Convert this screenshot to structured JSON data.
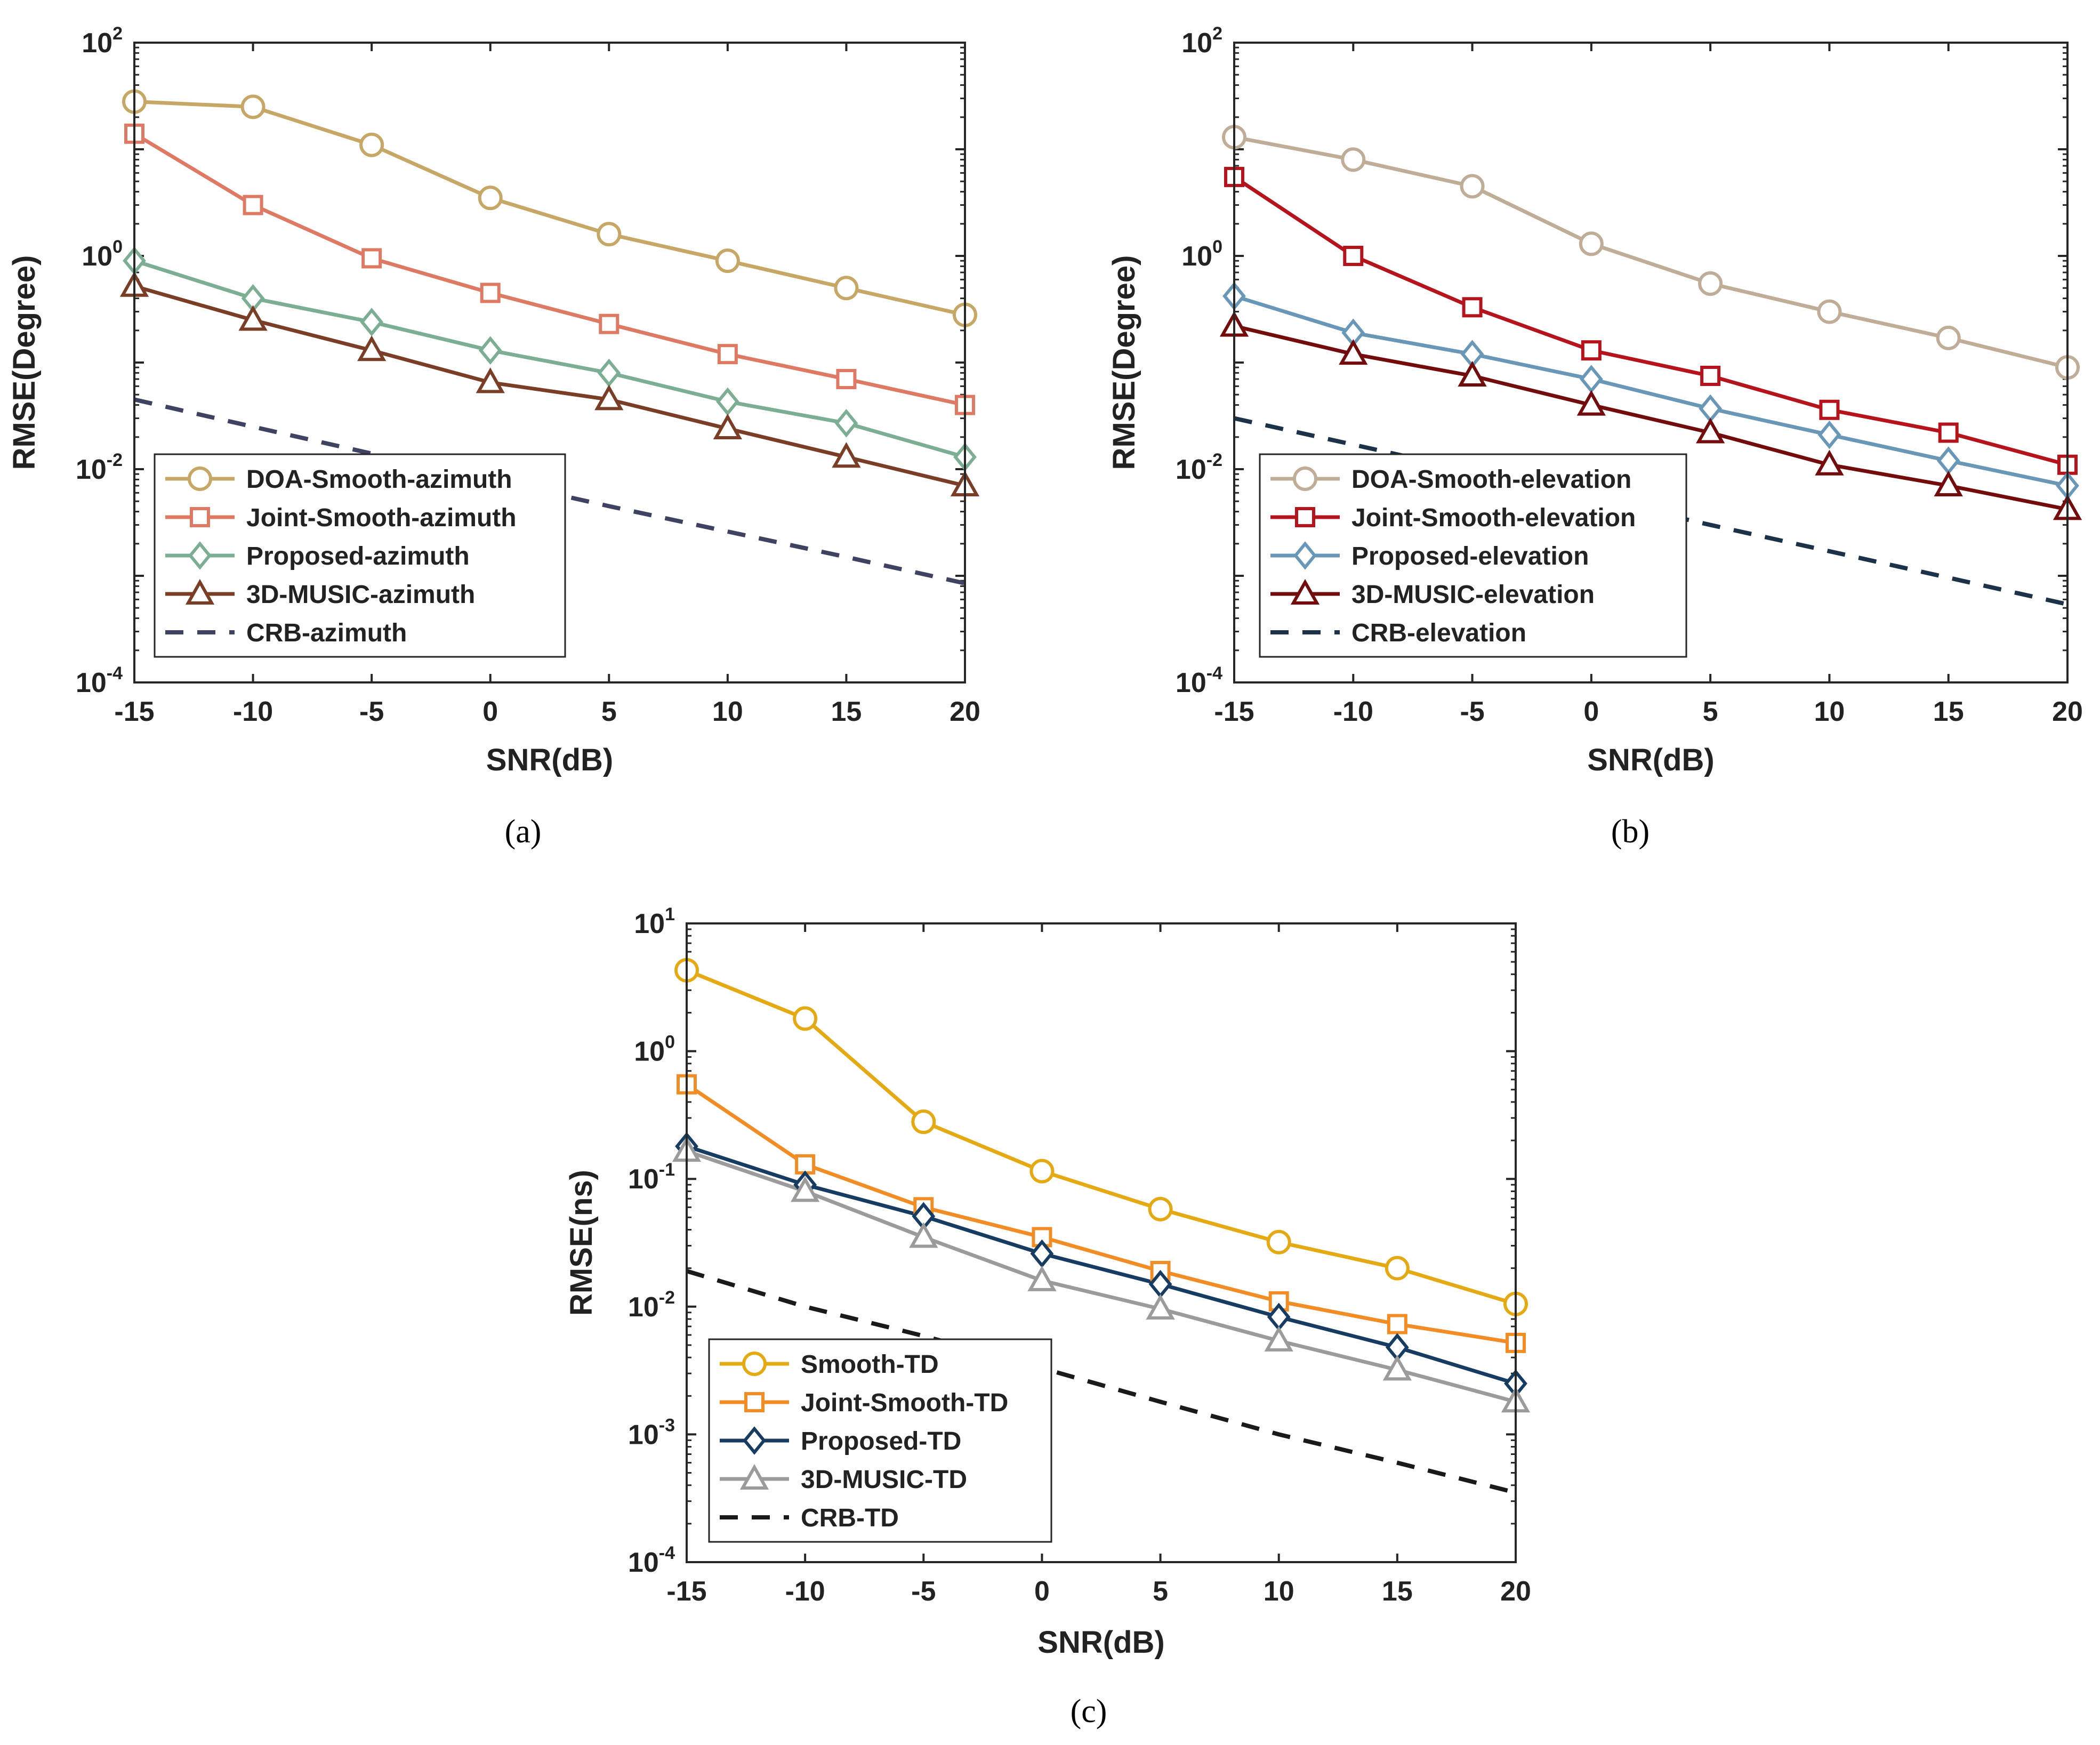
{
  "chart_data": [
    {
      "type": "line",
      "caption": "(a)",
      "scale": "log",
      "xlabel": "SNR(dB)",
      "ylabel": "RMSE(Degree)",
      "x": [
        -15,
        -10,
        -5,
        0,
        5,
        10,
        15,
        20
      ],
      "xlim": [
        -15,
        20
      ],
      "xticks": [
        "-15",
        "-10",
        "-5",
        "0",
        "5",
        "10",
        "15",
        "20"
      ],
      "ylim_exp": [
        -4,
        2
      ],
      "yticks_exp": [
        -4,
        -2,
        0,
        2
      ],
      "series": [
        {
          "name": "DOA-Smooth-azimuth",
          "color": "#c6a765",
          "marker": "circle",
          "dash": false,
          "values": [
            28,
            25,
            11,
            3.5,
            1.6,
            0.9,
            0.5,
            0.28
          ]
        },
        {
          "name": "Joint-Smooth-azimuth",
          "color": "#de7a63",
          "marker": "square",
          "dash": false,
          "values": [
            14,
            3.0,
            0.95,
            0.45,
            0.23,
            0.12,
            0.07,
            0.04
          ]
        },
        {
          "name": "Proposed-azimuth",
          "color": "#7cae94",
          "marker": "diamond",
          "dash": false,
          "values": [
            0.9,
            0.4,
            0.24,
            0.13,
            0.08,
            0.043,
            0.027,
            0.013
          ]
        },
        {
          "name": "3D-MUSIC-azimuth",
          "color": "#7a3d25",
          "marker": "triangle",
          "dash": false,
          "values": [
            0.52,
            0.25,
            0.13,
            0.065,
            0.045,
            0.024,
            0.013,
            0.007
          ]
        },
        {
          "name": "CRB-azimuth",
          "color": "#3f4261",
          "marker": "none",
          "dash": true,
          "values": [
            0.045,
            0.025,
            0.014,
            0.008,
            0.0045,
            0.0026,
            0.0015,
            0.00085
          ]
        }
      ]
    },
    {
      "type": "line",
      "caption": "(b)",
      "scale": "log",
      "xlabel": "SNR(dB)",
      "ylabel": "RMSE(Degree)",
      "x": [
        -15,
        -10,
        -5,
        0,
        5,
        10,
        15,
        20
      ],
      "xlim": [
        -15,
        20
      ],
      "xticks": [
        "-15",
        "-10",
        "-5",
        "0",
        "5",
        "10",
        "15",
        "20"
      ],
      "ylim_exp": [
        -4,
        2
      ],
      "yticks_exp": [
        -4,
        -2,
        0,
        2
      ],
      "series": [
        {
          "name": "DOA-Smooth-elevation",
          "color": "#bfad98",
          "marker": "circle",
          "dash": false,
          "values": [
            13,
            8,
            4.5,
            1.3,
            0.55,
            0.3,
            0.17,
            0.09
          ]
        },
        {
          "name": "Joint-Smooth-elevation",
          "color": "#b5141d",
          "marker": "square",
          "dash": false,
          "values": [
            5.5,
            1.0,
            0.33,
            0.13,
            0.075,
            0.036,
            0.022,
            0.011
          ]
        },
        {
          "name": "Proposed-elevation",
          "color": "#6897b8",
          "marker": "diamond",
          "dash": false,
          "values": [
            0.42,
            0.19,
            0.12,
            0.07,
            0.037,
            0.021,
            0.012,
            0.007
          ]
        },
        {
          "name": "3D-MUSIC-elevation",
          "color": "#730d0d",
          "marker": "triangle",
          "dash": false,
          "values": [
            0.22,
            0.12,
            0.075,
            0.04,
            0.022,
            0.011,
            0.007,
            0.0042
          ]
        },
        {
          "name": "CRB-elevation",
          "color": "#1b3248",
          "marker": "none",
          "dash": true,
          "values": [
            0.03,
            0.017,
            0.0096,
            0.0054,
            0.003,
            0.0017,
            0.00096,
            0.00054
          ]
        }
      ]
    },
    {
      "type": "line",
      "caption": "(c)",
      "scale": "log",
      "xlabel": "SNR(dB)",
      "ylabel": "RMSE(ns)",
      "x": [
        -15,
        -10,
        -5,
        0,
        5,
        10,
        15,
        20
      ],
      "xlim": [
        -15,
        20
      ],
      "xticks": [
        "-15",
        "-10",
        "-5",
        "0",
        "5",
        "10",
        "15",
        "20"
      ],
      "ylim_exp": [
        -4,
        1
      ],
      "yticks_exp": [
        -4,
        -3,
        -2,
        -1,
        0,
        1
      ],
      "series": [
        {
          "name": "Smooth-TD",
          "color": "#e5a914",
          "marker": "circle",
          "dash": false,
          "values": [
            4.3,
            1.8,
            0.28,
            0.115,
            0.058,
            0.032,
            0.02,
            0.0105
          ]
        },
        {
          "name": "Joint-Smooth-TD",
          "color": "#f28d25",
          "marker": "square",
          "dash": false,
          "values": [
            0.55,
            0.13,
            0.06,
            0.035,
            0.019,
            0.011,
            0.0073,
            0.0052
          ]
        },
        {
          "name": "Proposed-TD",
          "color": "#173c62",
          "marker": "diamond",
          "dash": false,
          "values": [
            0.18,
            0.09,
            0.051,
            0.026,
            0.015,
            0.0083,
            0.0048,
            0.0025
          ]
        },
        {
          "name": "3D-MUSIC-TD",
          "color": "#9b9b9b",
          "marker": "triangle",
          "dash": false,
          "values": [
            0.165,
            0.08,
            0.035,
            0.016,
            0.0096,
            0.0054,
            0.0032,
            0.0018
          ]
        },
        {
          "name": "CRB-TD",
          "color": "#1a1a1a",
          "marker": "none",
          "dash": true,
          "values": [
            0.019,
            0.01,
            0.0059,
            0.0033,
            0.0018,
            0.001,
            0.0006,
            0.00035
          ]
        }
      ]
    }
  ]
}
